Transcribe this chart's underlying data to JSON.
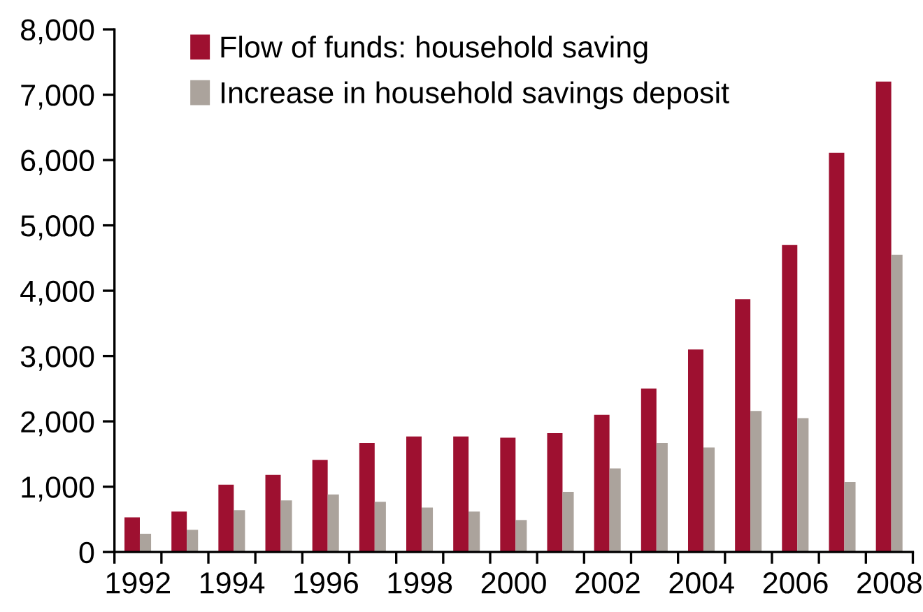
{
  "chart_data": {
    "type": "bar",
    "categories": [
      "1992",
      null,
      "1994",
      null,
      "1996",
      null,
      "1998",
      null,
      "2000",
      null,
      "2002",
      null,
      "2004",
      null,
      "2006",
      null,
      "2008"
    ],
    "series": [
      {
        "name": "Flow of funds: household saving",
        "color": "#9e1030",
        "values": [
          530,
          620,
          1030,
          1180,
          1410,
          1670,
          1770,
          1770,
          1750,
          1820,
          2100,
          2500,
          3100,
          3870,
          4700,
          6110,
          7200
        ]
      },
      {
        "name": "Increase in household savings deposit",
        "color": "#aba39c",
        "values": [
          280,
          340,
          640,
          790,
          880,
          770,
          680,
          620,
          490,
          920,
          1280,
          1670,
          1600,
          2160,
          2050,
          1070,
          4550
        ]
      }
    ],
    "ylim": [
      0,
      8000
    ],
    "yticks": [
      0,
      {
        "value": 1000,
        "label": "1,000"
      },
      {
        "value": 2000,
        "label": "2,000"
      },
      {
        "value": 3000,
        "label": "3,000"
      },
      {
        "value": 4000,
        "label": "4,000"
      },
      {
        "value": 5000,
        "label": "5,000"
      },
      {
        "value": 6000,
        "label": "6,000"
      },
      {
        "value": 7000,
        "label": "7,000"
      },
      {
        "value": 8000,
        "label": "8,000"
      }
    ],
    "grid": false,
    "legend": "top left"
  }
}
